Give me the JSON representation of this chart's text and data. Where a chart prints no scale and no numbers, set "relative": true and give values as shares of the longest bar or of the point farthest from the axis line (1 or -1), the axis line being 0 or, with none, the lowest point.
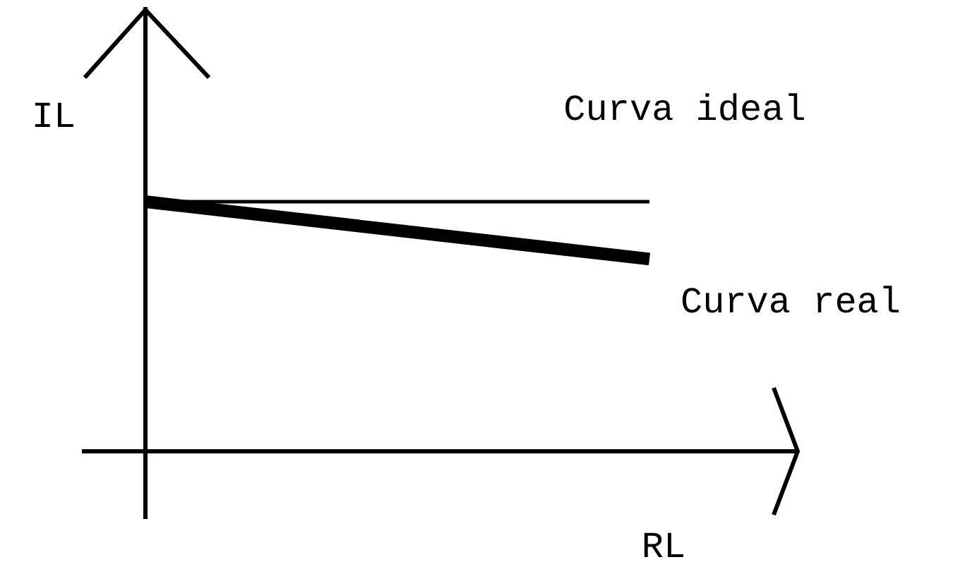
{
  "chart_data": {
    "type": "line",
    "relative": true,
    "xlabel": "RL",
    "ylabel": "IL",
    "categories": [
      null,
      null
    ],
    "legend": false,
    "grid": false,
    "marker": "none",
    "series": [
      {
        "name": "Curva ideal",
        "color": "#000000",
        "values": [
          1,
          1
        ]
      },
      {
        "name": "Curva real",
        "color": "#000000",
        "values": [
          1,
          0.77
        ]
      }
    ]
  }
}
